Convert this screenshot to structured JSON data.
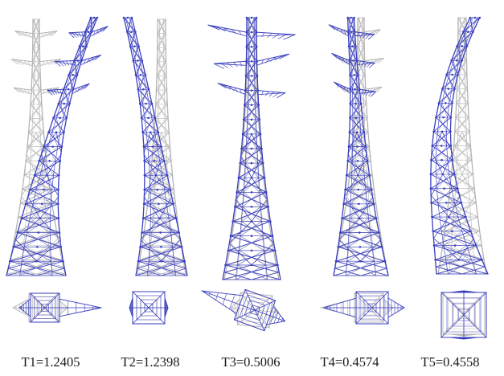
{
  "figure": {
    "deformed_color": "#3a3fbf",
    "undeformed_color": "#b4b4b4",
    "background": "#ffffff"
  },
  "modes": [
    {
      "id": "T1",
      "label": "T1=1.2405",
      "period": 1.2405
    },
    {
      "id": "T2",
      "label": "T2=1.2398",
      "period": 1.2398
    },
    {
      "id": "T3",
      "label": "T3=0.5006",
      "period": 0.5006
    },
    {
      "id": "T4",
      "label": "T4=0.4574",
      "period": 0.4574
    },
    {
      "id": "T5",
      "label": "T5=0.4558",
      "period": 0.4558
    }
  ]
}
